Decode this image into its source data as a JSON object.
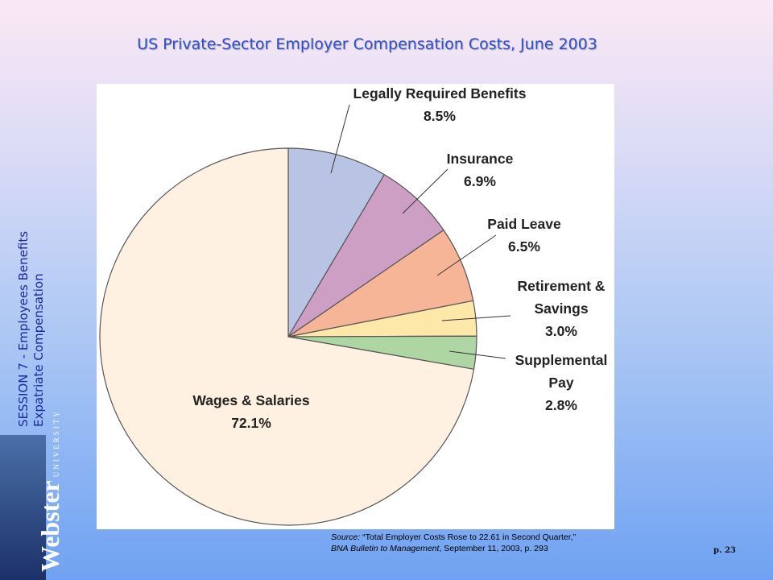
{
  "slide": {
    "sidebar": [
      "SESSION 7 - Employees Benefits",
      "Expatriate Compensation"
    ],
    "logo": {
      "name": "Webster",
      "sub": "UNIVERSITY"
    },
    "source": {
      "line1": {
        "italic": "Source:",
        "text": " “Total Employer Costs Rose to 22.61 in Second Quarter,”"
      },
      "line2": {
        "italic": "BNA Bulletin to Management",
        "text": ", September 11, 2003, p. 293"
      }
    },
    "page": "p. 23"
  },
  "chart_data": {
    "type": "pie",
    "title": "US Private-Sector Employer Compensation Costs, June 2003",
    "categories": [
      "Legally Required Benefits",
      "Insurance",
      "Paid Leave",
      "Retirement & Savings",
      "Supplemental Pay",
      "Wages & Salaries"
    ],
    "values": [
      8.5,
      6.9,
      6.5,
      3.0,
      2.8,
      72.1
    ],
    "value_labels": [
      "8.5%",
      "6.9%",
      "6.5%",
      "3.0%",
      "2.8%",
      "72.1%"
    ],
    "colors": [
      "#b9c3e3",
      "#cd9fc5",
      "#f5b596",
      "#fde8aa",
      "#aed6a2",
      "#fef1e1"
    ]
  }
}
